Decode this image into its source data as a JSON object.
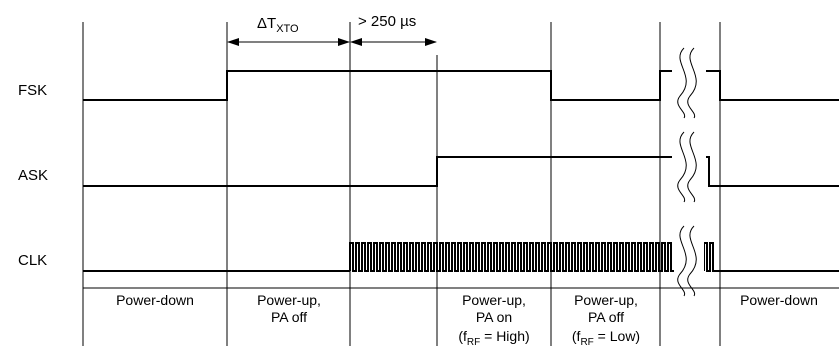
{
  "signals": {
    "fsk": "FSK",
    "ask": "ASK",
    "clk": "CLK"
  },
  "timing": {
    "xto_delta": "ΔT",
    "xto_sub": "XTO",
    "delay": "> 250 µs"
  },
  "phases": [
    {
      "line1": "Power-down",
      "line2": "",
      "line3_pre": "",
      "line3_sub": "",
      "line3_post": ""
    },
    {
      "line1": "Power-up,",
      "line2": "PA off",
      "line3_pre": "",
      "line3_sub": "",
      "line3_post": ""
    },
    {
      "line1": "Power-up,",
      "line2": "PA on",
      "line3_pre": "(f",
      "line3_sub": "RF",
      "line3_post": " = High)"
    },
    {
      "line1": "Power-up,",
      "line2": "PA off",
      "line3_pre": "(f",
      "line3_sub": "RF",
      "line3_post": " = Low)"
    },
    {
      "line1": "Power-down",
      "line2": "",
      "line3_pre": "",
      "line3_sub": "",
      "line3_post": ""
    }
  ]
}
